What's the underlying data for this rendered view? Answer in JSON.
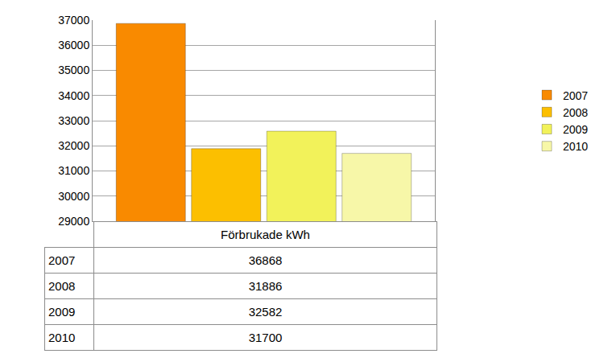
{
  "chart_data": {
    "type": "bar",
    "categories": [
      "Förbrukade kWh"
    ],
    "series": [
      {
        "name": "2007",
        "color": "#f98a00",
        "values": [
          36868
        ]
      },
      {
        "name": "2008",
        "color": "#fcbf00",
        "values": [
          31886
        ]
      },
      {
        "name": "2009",
        "color": "#f2f25a",
        "values": [
          32582
        ]
      },
      {
        "name": "2010",
        "color": "#f7f7a8",
        "values": [
          31700
        ]
      }
    ],
    "ylim": [
      29000,
      37000
    ],
    "yticks": [
      29000,
      30000,
      31000,
      32000,
      33000,
      34000,
      35000,
      36000,
      37000
    ],
    "grid": true,
    "legend": "right",
    "tick_labels": "y"
  }
}
